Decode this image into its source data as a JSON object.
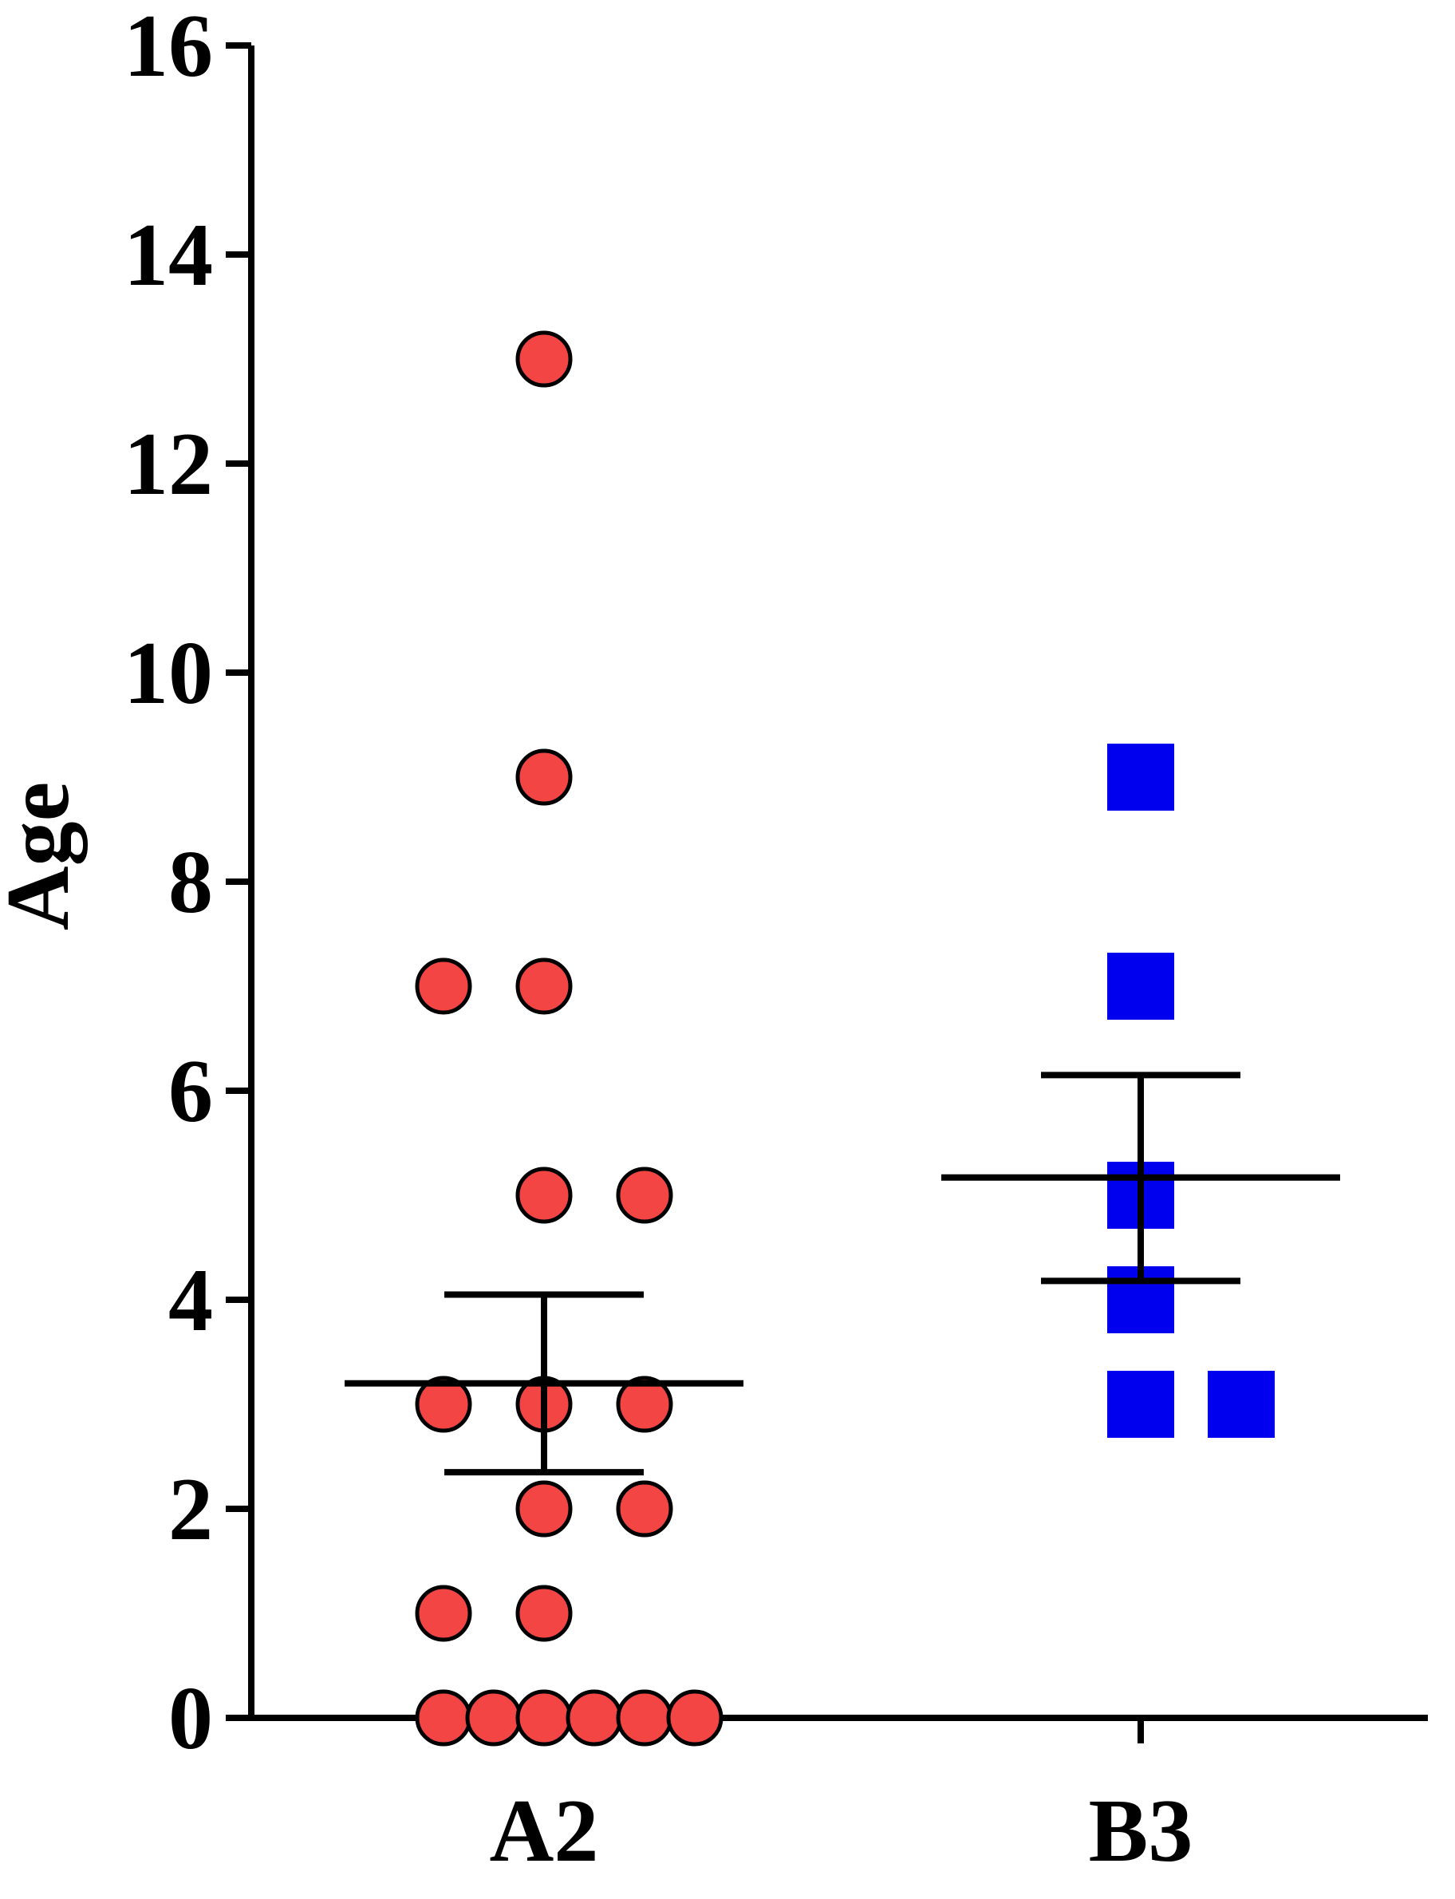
{
  "chart_data": {
    "type": "scatter",
    "title": "",
    "xlabel": "",
    "ylabel": "Age",
    "ylim": [
      0,
      16
    ],
    "yticks": [
      0,
      2,
      4,
      6,
      8,
      10,
      12,
      14,
      16
    ],
    "categories": [
      "A2",
      "B3"
    ],
    "grid": false,
    "legend": "none",
    "series": [
      {
        "category": "A2",
        "marker": "circle",
        "color": "#f44545",
        "edge_color": "#000000",
        "points": [
          {
            "y": 13,
            "offset": 0
          },
          {
            "y": 9,
            "offset": 0
          },
          {
            "y": 7,
            "offset": -1
          },
          {
            "y": 7,
            "offset": 0
          },
          {
            "y": 5,
            "offset": 0
          },
          {
            "y": 5,
            "offset": 1
          },
          {
            "y": 3,
            "offset": -1
          },
          {
            "y": 3,
            "offset": 0
          },
          {
            "y": 3,
            "offset": 1
          },
          {
            "y": 2,
            "offset": 0
          },
          {
            "y": 2,
            "offset": 1
          },
          {
            "y": 1,
            "offset": -1
          },
          {
            "y": 1,
            "offset": 0
          },
          {
            "y": 0,
            "offset": -1
          },
          {
            "y": 0,
            "offset": -0.5
          },
          {
            "y": 0,
            "offset": 0
          },
          {
            "y": 0,
            "offset": 0.5
          },
          {
            "y": 0,
            "offset": 1
          },
          {
            "y": 0,
            "offset": 1.5
          }
        ],
        "mean": 3.2,
        "sem_low": 2.35,
        "sem_high": 4.05
      },
      {
        "category": "B3",
        "marker": "square",
        "color": "#0000ee",
        "points": [
          {
            "y": 9,
            "offset": 0
          },
          {
            "y": 7,
            "offset": 0
          },
          {
            "y": 5,
            "offset": 0
          },
          {
            "y": 4,
            "offset": 0
          },
          {
            "y": 3,
            "offset": 0
          },
          {
            "y": 3,
            "offset": 1
          }
        ],
        "mean": 5.17,
        "sem_low": 4.18,
        "sem_high": 6.15
      }
    ]
  }
}
